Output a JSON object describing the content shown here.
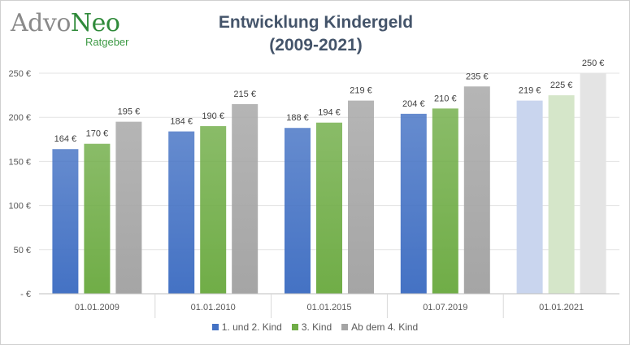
{
  "logo": {
    "part1": "Advo",
    "part2": "Neo",
    "sub": "Ratgeber"
  },
  "chart_data": {
    "type": "bar",
    "title_line1": "Entwicklung Kindergeld",
    "title_line2": "(2009-2021)",
    "categories": [
      "01.01.2009",
      "01.01.2010",
      "01.01.2015",
      "01.07.2019",
      "01.01.2021"
    ],
    "series": [
      {
        "name": "1. und 2. Kind",
        "values": [
          164,
          184,
          188,
          204,
          219
        ],
        "color": "#4472c4",
        "light": "#c9d5ee"
      },
      {
        "name": "3. Kind",
        "values": [
          170,
          190,
          194,
          210,
          225
        ],
        "color": "#70ad47",
        "light": "#d5e6c9"
      },
      {
        "name": "Ab dem 4. Kind",
        "values": [
          195,
          215,
          219,
          235,
          250
        ],
        "color": "#a5a5a5",
        "light": "#e4e4e4"
      }
    ],
    "value_suffix": " €",
    "faded_category_index": 4,
    "ylim": [
      0,
      250
    ],
    "yticks": [
      "-  €",
      "50 €",
      "100 €",
      "150 €",
      "200 €",
      "250 €"
    ],
    "grid": true,
    "legend_position": "bottom"
  }
}
